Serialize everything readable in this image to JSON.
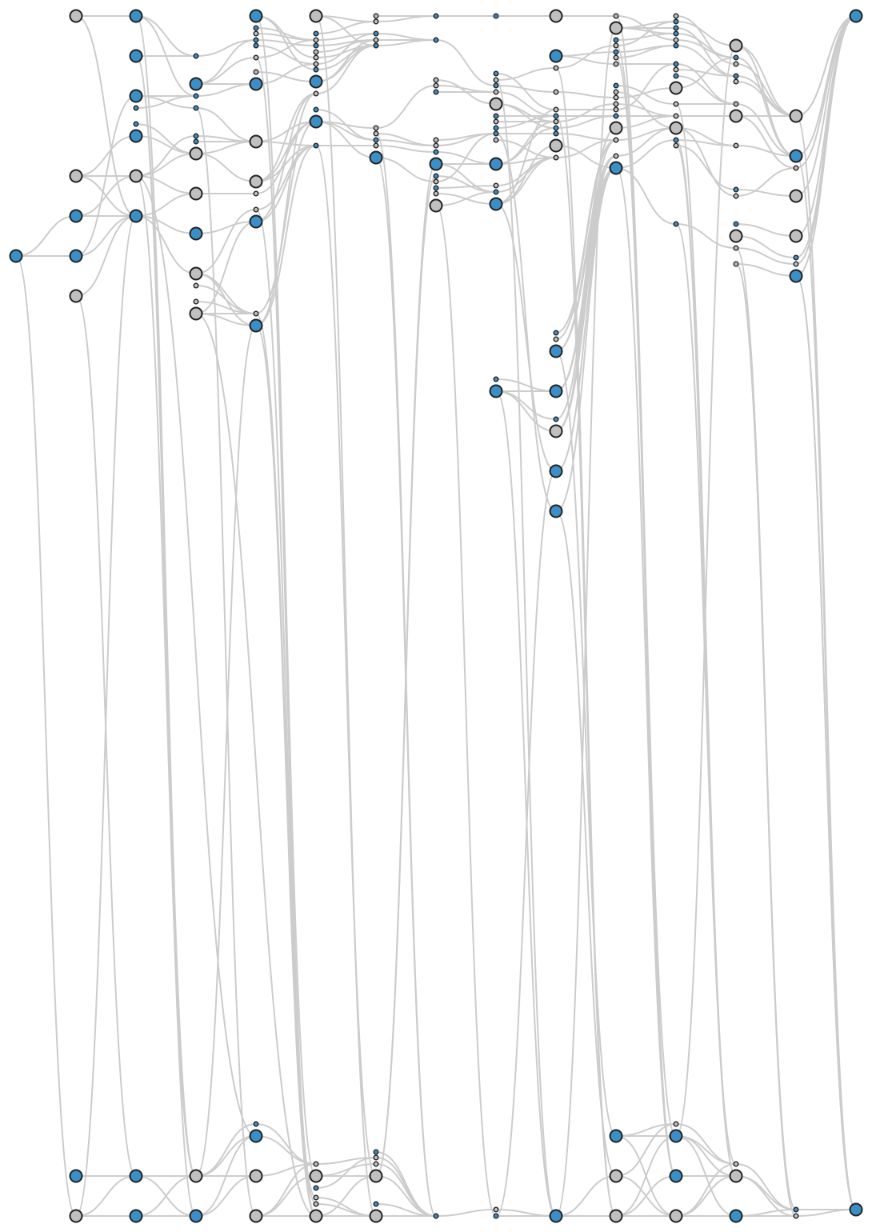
{
  "colors": {
    "background": "#ffffff",
    "edge": "#cccccc",
    "node_blue": "#3a8fc8",
    "node_gray": "#c0c0c0",
    "node_outline": "#222222"
  },
  "diagram": {
    "type": "layered-dag",
    "layers": 15,
    "labels": "none",
    "node_kinds": [
      "blue",
      "gray",
      "waypoint-blue",
      "waypoint-gray"
    ]
  }
}
